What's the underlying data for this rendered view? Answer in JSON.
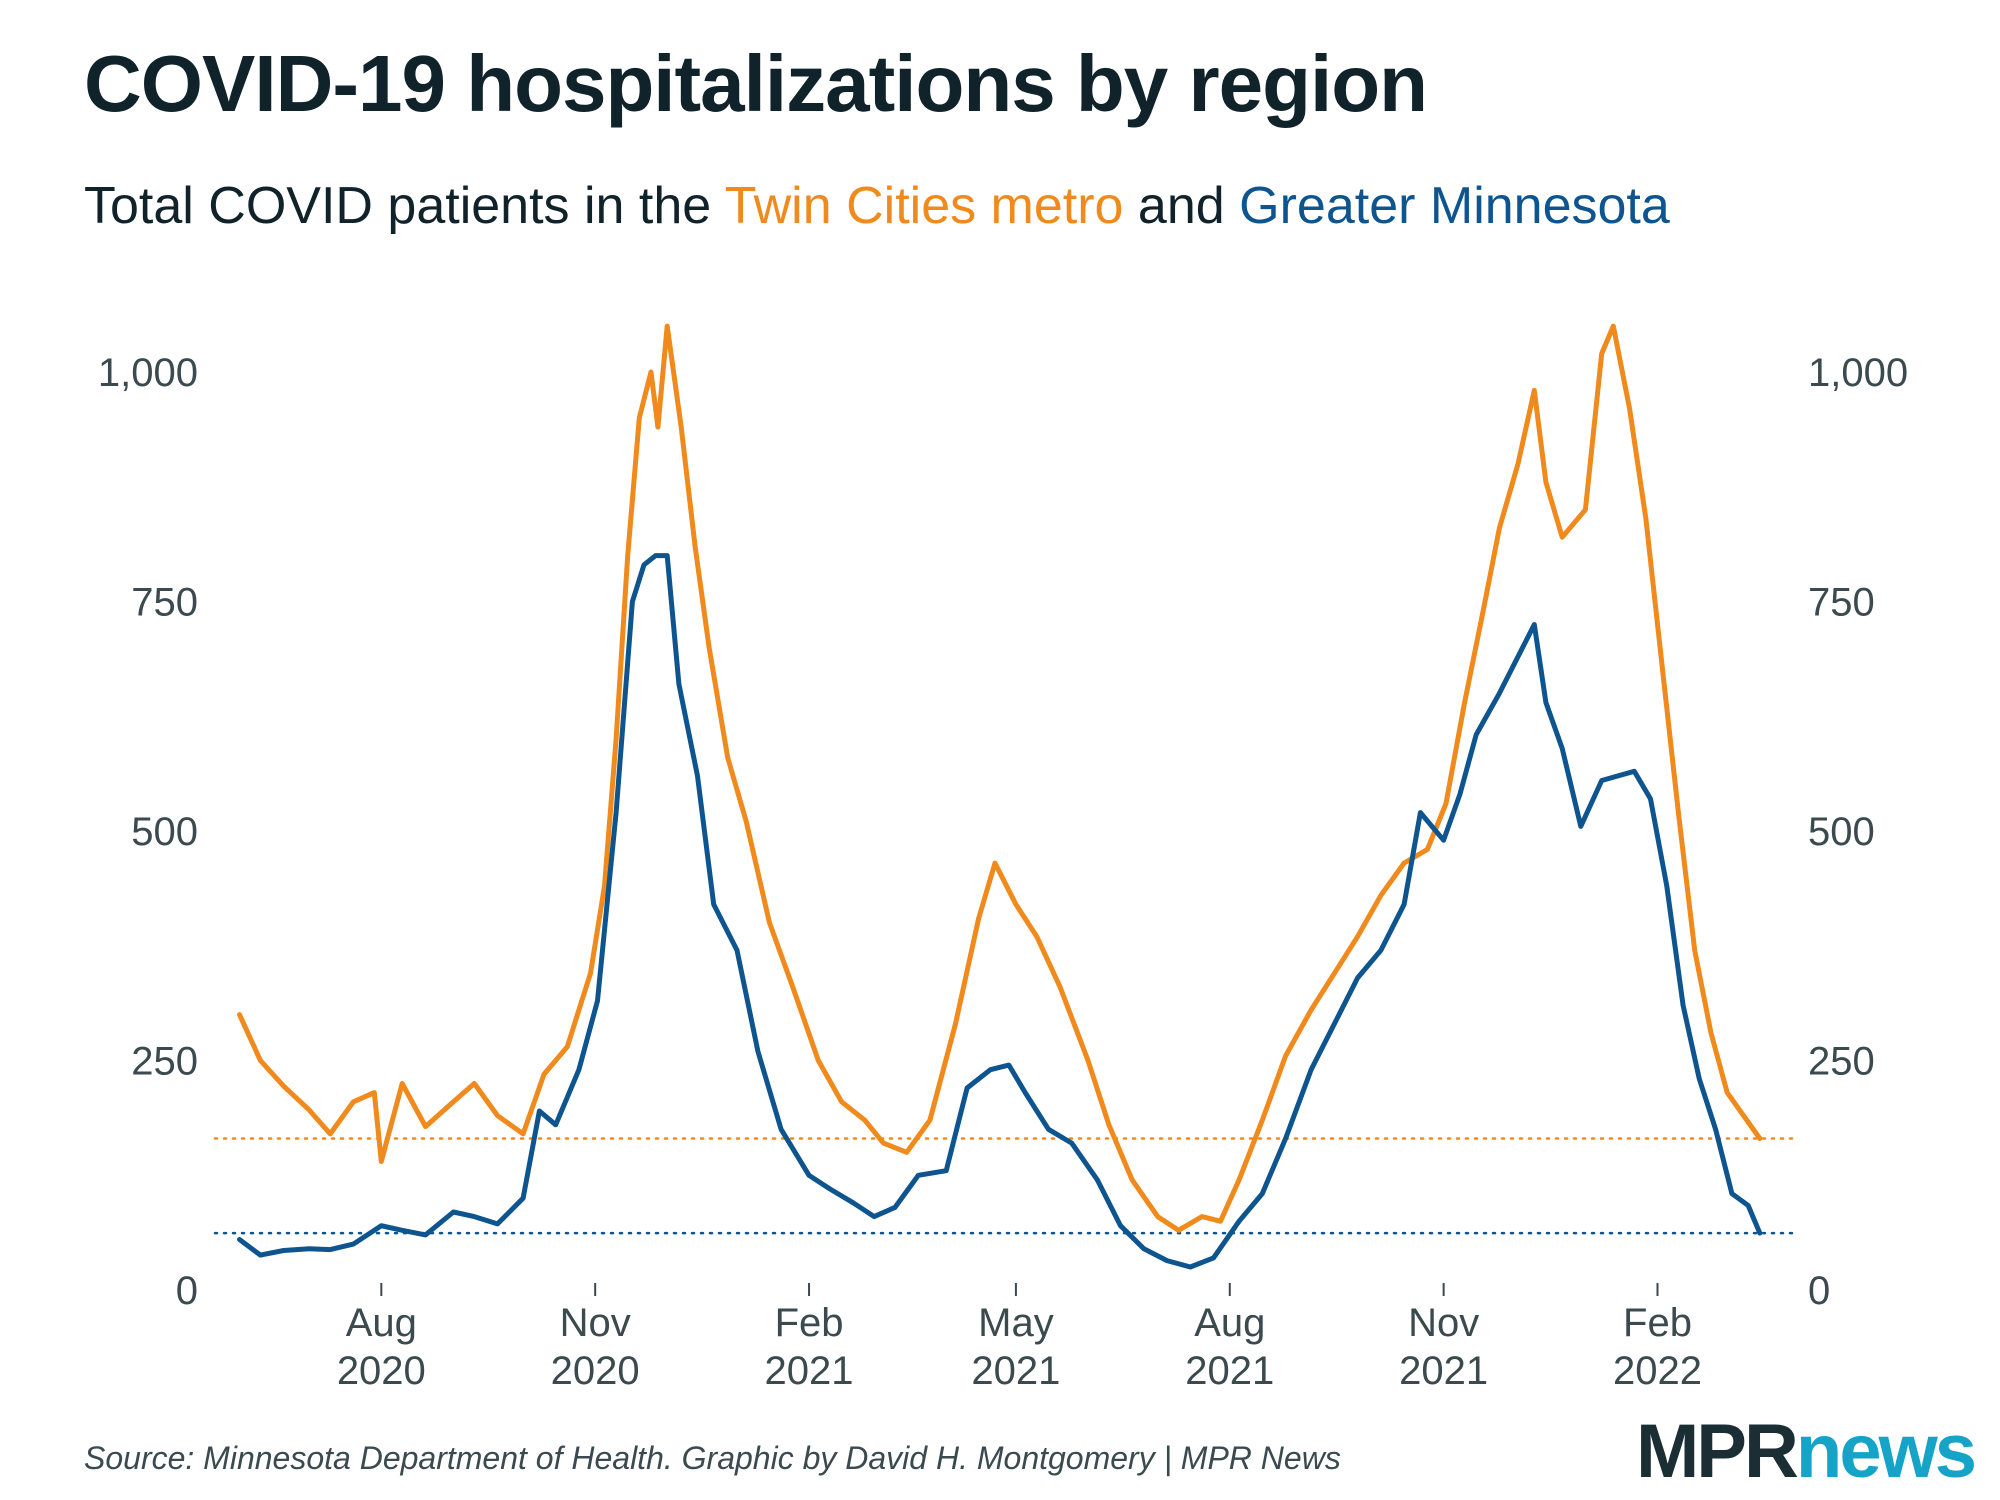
{
  "title": "COVID-19 hospitalizations by region",
  "subtitle": {
    "prefix": "Total COVID patients in the ",
    "metro": "Twin Cities metro",
    "middle": " and ",
    "greater": "Greater Minnesota"
  },
  "source": "Source: Minnesota Department of Health. Graphic by David H. Montgomery | MPR News",
  "logo": {
    "mpr": "MPR",
    "news": "news"
  },
  "colors": {
    "metro": "#f08a1c",
    "greater": "#0e5590"
  },
  "chart_data": {
    "type": "line",
    "ylim": [
      0,
      1000
    ],
    "yticks": [
      {
        "value": 0,
        "label": "0"
      },
      {
        "value": 250,
        "label": "250"
      },
      {
        "value": 500,
        "label": "500"
      },
      {
        "value": 750,
        "label": "750"
      },
      {
        "value": 1000,
        "label": "1,000"
      }
    ],
    "xlim": [
      "2020-05-15",
      "2022-03-30"
    ],
    "xticks": [
      {
        "date": "2020-08-01",
        "month": "Aug",
        "year": "2020"
      },
      {
        "date": "2020-11-01",
        "month": "Nov",
        "year": "2020"
      },
      {
        "date": "2021-02-01",
        "month": "Feb",
        "year": "2021"
      },
      {
        "date": "2021-05-01",
        "month": "May",
        "year": "2021"
      },
      {
        "date": "2021-08-01",
        "month": "Aug",
        "year": "2021"
      },
      {
        "date": "2021-11-01",
        "month": "Nov",
        "year": "2021"
      },
      {
        "date": "2022-02-01",
        "month": "Feb",
        "year": "2022"
      }
    ],
    "reference_lines": [
      {
        "series": "metro",
        "value": 165
      },
      {
        "series": "greater",
        "value": 62
      }
    ],
    "series": [
      {
        "key": "metro",
        "color": "#f08a1c",
        "points": [
          [
            "2020-06-01",
            300
          ],
          [
            "2020-06-10",
            250
          ],
          [
            "2020-06-20",
            222
          ],
          [
            "2020-07-01",
            196
          ],
          [
            "2020-07-10",
            170
          ],
          [
            "2020-07-20",
            205
          ],
          [
            "2020-07-29",
            215
          ],
          [
            "2020-08-01",
            140
          ],
          [
            "2020-08-10",
            225
          ],
          [
            "2020-08-20",
            178
          ],
          [
            "2020-09-01",
            205
          ],
          [
            "2020-09-10",
            225
          ],
          [
            "2020-09-20",
            190
          ],
          [
            "2020-10-01",
            170
          ],
          [
            "2020-10-10",
            235
          ],
          [
            "2020-10-20",
            265
          ],
          [
            "2020-10-30",
            345
          ],
          [
            "2020-11-05",
            440
          ],
          [
            "2020-11-10",
            600
          ],
          [
            "2020-11-15",
            800
          ],
          [
            "2020-11-20",
            950
          ],
          [
            "2020-11-25",
            1000
          ],
          [
            "2020-11-28",
            940
          ],
          [
            "2020-12-02",
            1050
          ],
          [
            "2020-12-08",
            940
          ],
          [
            "2020-12-14",
            810
          ],
          [
            "2020-12-20",
            700
          ],
          [
            "2020-12-28",
            580
          ],
          [
            "2021-01-05",
            510
          ],
          [
            "2021-01-15",
            400
          ],
          [
            "2021-01-25",
            330
          ],
          [
            "2021-02-05",
            250
          ],
          [
            "2021-02-15",
            205
          ],
          [
            "2021-02-25",
            185
          ],
          [
            "2021-03-05",
            160
          ],
          [
            "2021-03-15",
            150
          ],
          [
            "2021-03-25",
            185
          ],
          [
            "2021-04-05",
            290
          ],
          [
            "2021-04-15",
            405
          ],
          [
            "2021-04-22",
            465
          ],
          [
            "2021-05-01",
            420
          ],
          [
            "2021-05-10",
            385
          ],
          [
            "2021-05-20",
            330
          ],
          [
            "2021-06-01",
            250
          ],
          [
            "2021-06-10",
            180
          ],
          [
            "2021-06-20",
            120
          ],
          [
            "2021-07-01",
            80
          ],
          [
            "2021-07-10",
            65
          ],
          [
            "2021-07-20",
            80
          ],
          [
            "2021-07-28",
            75
          ],
          [
            "2021-08-05",
            120
          ],
          [
            "2021-08-15",
            185
          ],
          [
            "2021-08-25",
            255
          ],
          [
            "2021-09-05",
            305
          ],
          [
            "2021-09-15",
            345
          ],
          [
            "2021-09-25",
            385
          ],
          [
            "2021-10-05",
            430
          ],
          [
            "2021-10-15",
            465
          ],
          [
            "2021-10-25",
            480
          ],
          [
            "2021-11-02",
            530
          ],
          [
            "2021-11-10",
            640
          ],
          [
            "2021-11-18",
            740
          ],
          [
            "2021-11-25",
            830
          ],
          [
            "2021-12-03",
            900
          ],
          [
            "2021-12-10",
            980
          ],
          [
            "2021-12-15",
            880
          ],
          [
            "2021-12-22",
            820
          ],
          [
            "2022-01-01",
            850
          ],
          [
            "2022-01-08",
            1020
          ],
          [
            "2022-01-13",
            1050
          ],
          [
            "2022-01-20",
            960
          ],
          [
            "2022-01-27",
            840
          ],
          [
            "2022-02-03",
            680
          ],
          [
            "2022-02-10",
            520
          ],
          [
            "2022-02-17",
            370
          ],
          [
            "2022-02-24",
            280
          ],
          [
            "2022-03-03",
            215
          ],
          [
            "2022-03-10",
            190
          ],
          [
            "2022-03-17",
            165
          ]
        ]
      },
      {
        "key": "greater",
        "color": "#0e5590",
        "points": [
          [
            "2020-06-01",
            55
          ],
          [
            "2020-06-10",
            38
          ],
          [
            "2020-06-20",
            43
          ],
          [
            "2020-07-01",
            45
          ],
          [
            "2020-07-10",
            44
          ],
          [
            "2020-07-20",
            50
          ],
          [
            "2020-08-01",
            70
          ],
          [
            "2020-08-10",
            65
          ],
          [
            "2020-08-20",
            60
          ],
          [
            "2020-09-01",
            85
          ],
          [
            "2020-09-10",
            80
          ],
          [
            "2020-09-20",
            72
          ],
          [
            "2020-10-01",
            100
          ],
          [
            "2020-10-08",
            195
          ],
          [
            "2020-10-15",
            180
          ],
          [
            "2020-10-25",
            240
          ],
          [
            "2020-11-02",
            315
          ],
          [
            "2020-11-10",
            520
          ],
          [
            "2020-11-17",
            750
          ],
          [
            "2020-11-22",
            790
          ],
          [
            "2020-11-27",
            800
          ],
          [
            "2020-12-02",
            800
          ],
          [
            "2020-12-07",
            660
          ],
          [
            "2020-12-15",
            560
          ],
          [
            "2020-12-22",
            420
          ],
          [
            "2021-01-01",
            370
          ],
          [
            "2021-01-10",
            260
          ],
          [
            "2021-01-20",
            175
          ],
          [
            "2021-02-01",
            125
          ],
          [
            "2021-02-10",
            110
          ],
          [
            "2021-02-20",
            95
          ],
          [
            "2021-03-01",
            80
          ],
          [
            "2021-03-10",
            90
          ],
          [
            "2021-03-20",
            125
          ],
          [
            "2021-04-01",
            130
          ],
          [
            "2021-04-10",
            220
          ],
          [
            "2021-04-20",
            240
          ],
          [
            "2021-04-28",
            245
          ],
          [
            "2021-05-05",
            215
          ],
          [
            "2021-05-15",
            175
          ],
          [
            "2021-05-25",
            160
          ],
          [
            "2021-06-05",
            120
          ],
          [
            "2021-06-15",
            70
          ],
          [
            "2021-06-25",
            45
          ],
          [
            "2021-07-05",
            32
          ],
          [
            "2021-07-15",
            25
          ],
          [
            "2021-07-25",
            35
          ],
          [
            "2021-08-05",
            75
          ],
          [
            "2021-08-15",
            105
          ],
          [
            "2021-08-25",
            165
          ],
          [
            "2021-09-05",
            240
          ],
          [
            "2021-09-15",
            290
          ],
          [
            "2021-09-25",
            340
          ],
          [
            "2021-10-05",
            370
          ],
          [
            "2021-10-15",
            420
          ],
          [
            "2021-10-22",
            520
          ],
          [
            "2021-11-01",
            490
          ],
          [
            "2021-11-08",
            540
          ],
          [
            "2021-11-15",
            605
          ],
          [
            "2021-11-25",
            650
          ],
          [
            "2021-12-05",
            700
          ],
          [
            "2021-12-10",
            725
          ],
          [
            "2021-12-15",
            640
          ],
          [
            "2021-12-22",
            590
          ],
          [
            "2021-12-30",
            505
          ],
          [
            "2022-01-08",
            555
          ],
          [
            "2022-01-15",
            560
          ],
          [
            "2022-01-22",
            565
          ],
          [
            "2022-01-29",
            535
          ],
          [
            "2022-02-05",
            440
          ],
          [
            "2022-02-12",
            310
          ],
          [
            "2022-02-19",
            230
          ],
          [
            "2022-02-26",
            175
          ],
          [
            "2022-03-05",
            105
          ],
          [
            "2022-03-12",
            92
          ],
          [
            "2022-03-17",
            62
          ]
        ]
      }
    ]
  }
}
